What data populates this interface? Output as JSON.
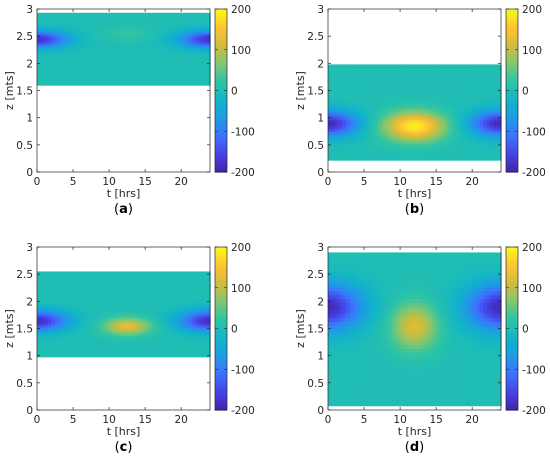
{
  "colorbar": {
    "min": -200,
    "max": 200,
    "ticks": [
      200,
      100,
      0,
      -100,
      -200
    ],
    "colormap": "parula",
    "colormap_stops": [
      "#3e26a8",
      "#4743e8",
      "#3e73fd",
      "#1e9be6",
      "#12b6c6",
      "#2fc4a3",
      "#83c76f",
      "#d4bb3a",
      "#fec535",
      "#f9fb14"
    ]
  },
  "chart_data": [
    {
      "type": "heatmap",
      "panel_label": "a",
      "xlabel": "t [hrs]",
      "ylabel": "z [mts]",
      "xlim": [
        0,
        24
      ],
      "ylim": [
        0,
        3
      ],
      "xticks": [
        0,
        5,
        10,
        15,
        20
      ],
      "yticks": [
        0,
        0.5,
        1,
        1.5,
        2,
        2.5,
        3
      ],
      "z_extent": [
        1.6,
        2.93
      ],
      "background_value": 0,
      "blobs": [
        {
          "t": 0,
          "z": 2.45,
          "st": 4,
          "sz": 0.15,
          "v": -180
        },
        {
          "t": 24,
          "z": 2.45,
          "st": 4,
          "sz": 0.15,
          "v": -180
        },
        {
          "t": 12.5,
          "z": 2.55,
          "st": 3,
          "sz": 0.12,
          "v": 25
        }
      ],
      "colorbar_label": [
        "200",
        "100",
        "0",
        "-100",
        "-200"
      ]
    },
    {
      "type": "heatmap",
      "panel_label": "b",
      "xlabel": "t [hrs]",
      "ylabel": "z [mts]",
      "xlim": [
        0,
        24
      ],
      "ylim": [
        0,
        3
      ],
      "xticks": [
        0,
        5,
        10,
        15,
        20
      ],
      "yticks": [
        0,
        0.5,
        1,
        1.5,
        2,
        2.5,
        3
      ],
      "z_extent": [
        0.22,
        1.98
      ],
      "background_value": 0,
      "blobs": [
        {
          "t": 0,
          "z": 0.9,
          "st": 4,
          "sz": 0.22,
          "v": -190
        },
        {
          "t": 24,
          "z": 0.9,
          "st": 4,
          "sz": 0.22,
          "v": -190
        },
        {
          "t": 12,
          "z": 0.85,
          "st": 4,
          "sz": 0.25,
          "v": 190
        }
      ],
      "colorbar_label": [
        "200",
        "100",
        "0",
        "-100",
        "-200"
      ]
    },
    {
      "type": "heatmap",
      "panel_label": "c",
      "xlabel": "t [hrs]",
      "ylabel": "z [mts]",
      "xlim": [
        0,
        24
      ],
      "ylim": [
        0,
        3
      ],
      "xticks": [
        0,
        5,
        10,
        15,
        20
      ],
      "yticks": [
        0,
        0.5,
        1,
        1.5,
        2,
        2.5,
        3
      ],
      "z_extent": [
        0.98,
        2.55
      ],
      "background_value": 0,
      "blobs": [
        {
          "t": 0,
          "z": 1.65,
          "st": 4,
          "sz": 0.18,
          "v": -185
        },
        {
          "t": 24,
          "z": 1.65,
          "st": 4,
          "sz": 0.18,
          "v": -185
        },
        {
          "t": 12.5,
          "z": 1.55,
          "st": 3,
          "sz": 0.15,
          "v": 130
        }
      ],
      "colorbar_label": [
        "200",
        "100",
        "0",
        "-100",
        "-200"
      ]
    },
    {
      "type": "heatmap",
      "panel_label": "d",
      "xlabel": "t [hrs]",
      "ylabel": "z [mts]",
      "xlim": [
        0,
        24
      ],
      "ylim": [
        0,
        3
      ],
      "xticks": [
        0,
        5,
        10,
        15,
        20
      ],
      "yticks": [
        0,
        0.5,
        1,
        1.5,
        2,
        2.5,
        3
      ],
      "z_extent": [
        0.08,
        2.9
      ],
      "background_value": 0,
      "blobs": [
        {
          "t": 0,
          "z": 1.9,
          "st": 4.5,
          "sz": 0.4,
          "v": -190
        },
        {
          "t": 24,
          "z": 1.9,
          "st": 4.5,
          "sz": 0.4,
          "v": -190
        },
        {
          "t": 12,
          "z": 1.55,
          "st": 3,
          "sz": 0.4,
          "v": 120
        }
      ],
      "colorbar_label": [
        "200",
        "100",
        "0",
        "-100",
        "-200"
      ]
    }
  ]
}
